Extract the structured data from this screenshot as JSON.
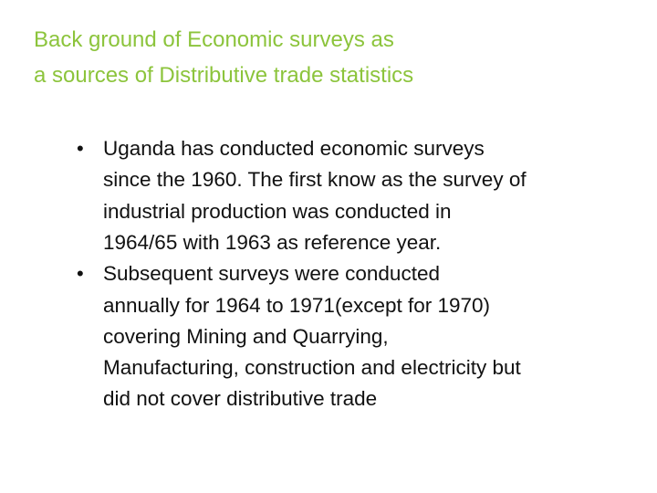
{
  "title": {
    "lines": [
      "Back ground of Economic surveys as",
      "a sources of Distributive trade statistics"
    ]
  },
  "bullets": [
    {
      "lines": [
        "Uganda has conducted economic surveys",
        "since the 1960. The first know as the survey of",
        "industrial production was conducted in",
        "1964/65 with 1963 as reference year."
      ]
    },
    {
      "lines": [
        "Subsequent surveys were conducted",
        "annually for 1964 to 1971(except for 1970)",
        "covering Mining and Quarrying,",
        "Manufacturing, construction and electricity but",
        "did not cover distributive trade"
      ]
    }
  ]
}
